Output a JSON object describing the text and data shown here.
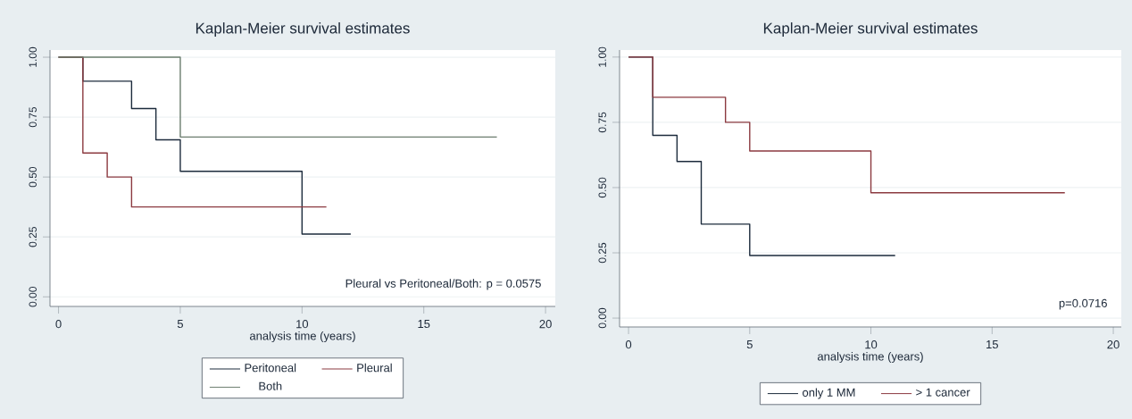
{
  "chart_data": [
    {
      "type": "step",
      "title": "Kaplan-Meier survival estimates",
      "xlabel": "analysis time (years)",
      "xlim": [
        -0.35,
        20.4
      ],
      "ylim": [
        -0.04,
        1.03
      ],
      "xticks": [
        0,
        5,
        10,
        15,
        20
      ],
      "yticks": [
        {
          "value": 0,
          "label": "0.00"
        },
        {
          "value": 0.25,
          "label": "0.25"
        },
        {
          "value": 0.5,
          "label": "0.50"
        },
        {
          "value": 0.75,
          "label": "0.75"
        },
        {
          "value": 1,
          "label": "1.00"
        }
      ],
      "grid": "y",
      "legend": "bottom",
      "annotations": [
        "Pleural vs Peritoneal/Both: p = 0.0575"
      ],
      "series": [
        {
          "name": "Peritoneal",
          "color": "#1c2b3c",
          "x": [
            0,
            1,
            3,
            4,
            5,
            10,
            12
          ],
          "values": [
            1,
            0.9,
            0.786,
            0.655,
            0.524,
            0.262,
            0.262
          ]
        },
        {
          "name": "Pleural",
          "color": "#8c3a40",
          "x": [
            0,
            1,
            2,
            3,
            11
          ],
          "values": [
            1,
            0.6,
            0.5,
            0.375,
            0.375
          ]
        },
        {
          "name": "Both",
          "color": "#6b7d6e",
          "x": [
            0,
            5,
            18
          ],
          "values": [
            1,
            0.667,
            0.667
          ]
        }
      ]
    },
    {
      "type": "step",
      "title": "Kaplan-Meier survival estimates",
      "xlabel": "analysis time (years)",
      "xlim": [
        -0.37,
        20.33
      ],
      "ylim": [
        -0.034,
        1.027
      ],
      "xticks": [
        0,
        5,
        10,
        15,
        20
      ],
      "yticks": [
        {
          "value": 0,
          "label": "0.00"
        },
        {
          "value": 0.25,
          "label": "0.25"
        },
        {
          "value": 0.5,
          "label": "0.50"
        },
        {
          "value": 0.75,
          "label": "0.75"
        },
        {
          "value": 1,
          "label": "1.00"
        }
      ],
      "grid": "y",
      "legend": "bottom",
      "annotations": [
        "p=0.0716"
      ],
      "series": [
        {
          "name": "only 1 MM",
          "color": "#1c2b3c",
          "x": [
            0,
            1,
            2,
            3,
            5,
            11
          ],
          "values": [
            1,
            0.7,
            0.6,
            0.36,
            0.24,
            0.24
          ]
        },
        {
          "name": "> 1 cancer",
          "color": "#8c3a40",
          "x": [
            0,
            1,
            4,
            5,
            10,
            18
          ],
          "values": [
            1,
            0.846,
            0.75,
            0.64,
            0.48,
            0.48
          ]
        }
      ]
    }
  ]
}
